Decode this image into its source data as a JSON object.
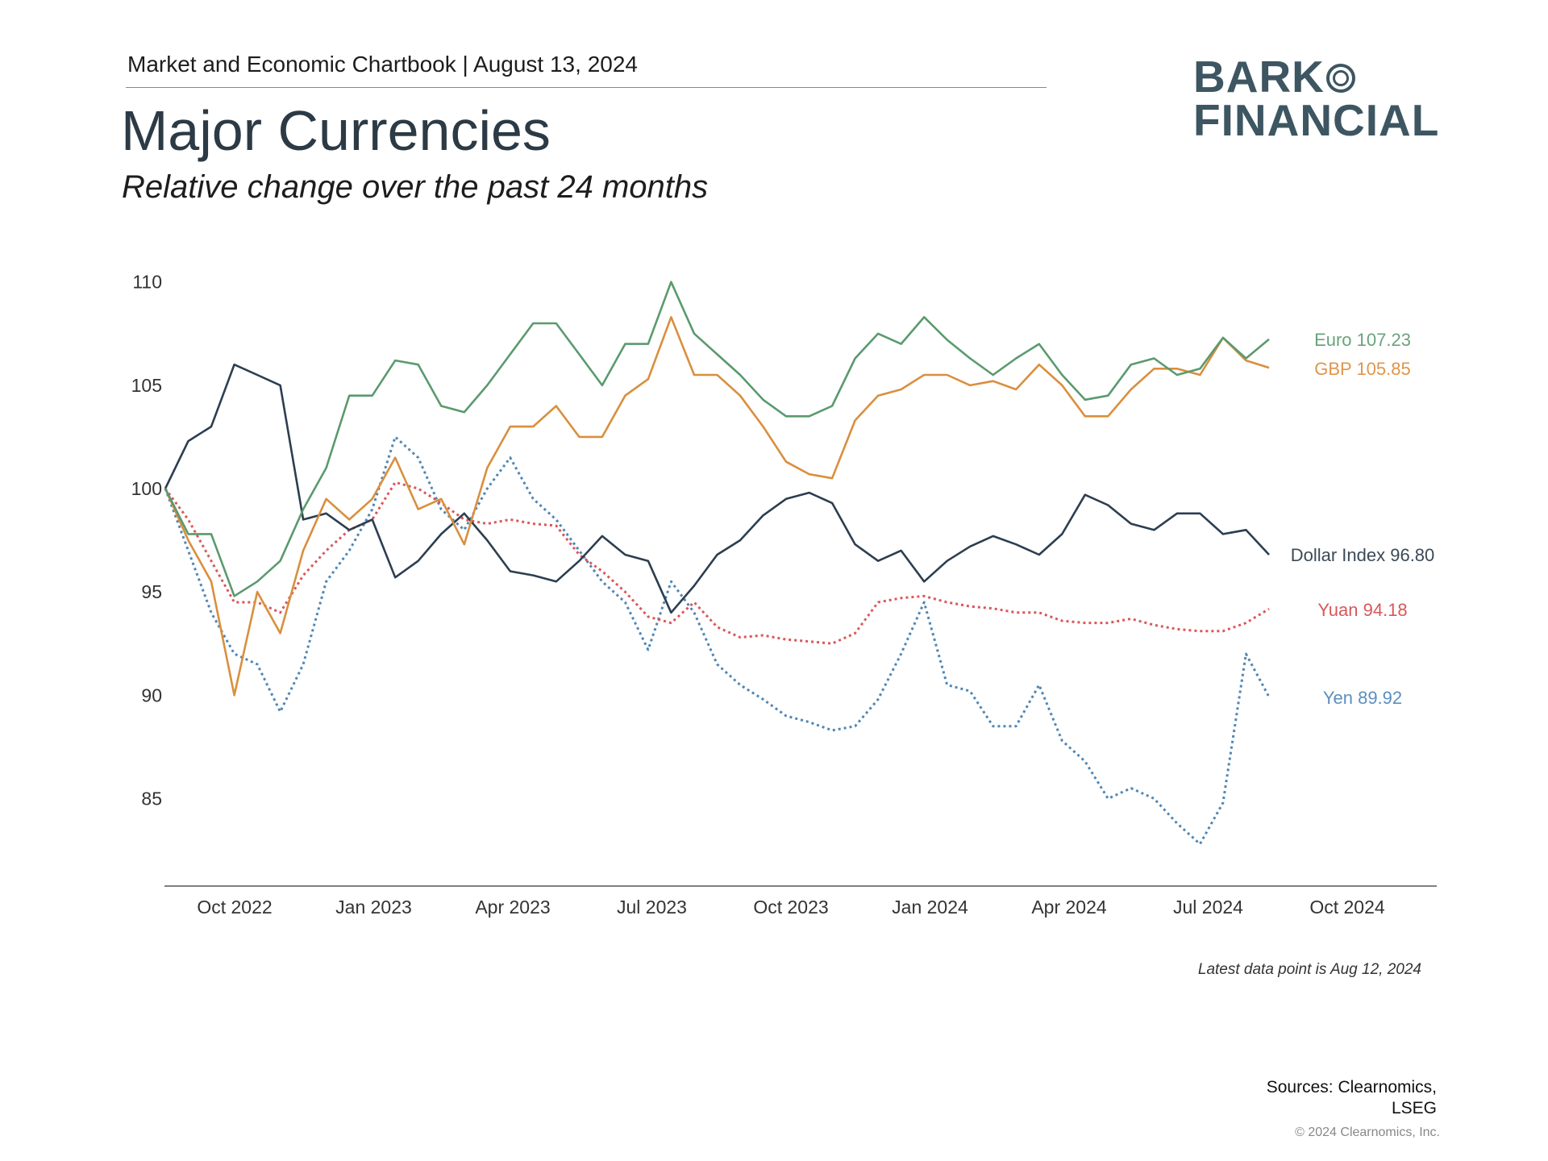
{
  "header": {
    "chartbook": "Market and Economic Chartbook | August 13, 2024",
    "title": "Major Currencies",
    "subtitle": "Relative change over the past 24 months"
  },
  "logo": {
    "line1_text": "BARK",
    "line2_text": "FINANCIAL",
    "full": "BARKO FINANCIAL"
  },
  "footer": {
    "latest": "Latest data point is Aug 12, 2024",
    "sources_line1": "Sources: Clearnomics,",
    "sources_line2": "LSEG",
    "copyright": "© 2024 Clearnomics, Inc."
  },
  "chart_data": {
    "type": "line",
    "title": "Major Currencies",
    "subtitle": "Relative change over the past 24 months",
    "x_start": "2022-08-12",
    "x_end": "2024-08-12",
    "x_step": "half-month",
    "xlabel": "",
    "ylabel": "",
    "ylim": [
      82,
      110.5
    ],
    "yticks": [
      110,
      105,
      100,
      95,
      90,
      85
    ],
    "xticks": [
      "Oct 2022",
      "Jan 2023",
      "Apr 2023",
      "Jul 2023",
      "Oct 2023",
      "Jan 2024",
      "Apr 2024",
      "Jul 2024",
      "Oct 2024"
    ],
    "grid": false,
    "legend": "direct labels at right end of lines",
    "series": [
      {
        "name": "Euro",
        "label": "Euro 107.23",
        "color": "#5a9a6e",
        "label_color": "#6aa37b",
        "style": "solid",
        "values": [
          100,
          97.8,
          97.8,
          94.8,
          95.5,
          96.5,
          99,
          101,
          104.5,
          104.5,
          106.2,
          106,
          104,
          103.7,
          105,
          106.5,
          108,
          108,
          106.5,
          105,
          107,
          107,
          110,
          107.5,
          106.5,
          105.5,
          104.3,
          103.5,
          103.5,
          104,
          106.3,
          107.5,
          107,
          108.3,
          107.2,
          106.3,
          105.5,
          106.3,
          107,
          105.5,
          104.3,
          104.5,
          106,
          106.3,
          105.5,
          105.8,
          107.3,
          106.3,
          107.23
        ]
      },
      {
        "name": "GBP",
        "label": "GBP 105.85",
        "color": "#d98f3e",
        "label_color": "#e0954a",
        "style": "solid",
        "values": [
          100,
          97.5,
          95.5,
          90,
          95,
          93,
          97,
          99.5,
          98.5,
          99.5,
          101.5,
          99,
          99.5,
          97.3,
          101,
          103,
          103,
          104,
          102.5,
          102.5,
          104.5,
          105.3,
          108.3,
          105.5,
          105.5,
          104.5,
          103,
          101.3,
          100.7,
          100.5,
          103.3,
          104.5,
          104.8,
          105.5,
          105.5,
          105,
          105.2,
          104.8,
          106,
          105,
          103.5,
          103.5,
          104.8,
          105.8,
          105.8,
          105.5,
          107.3,
          106.2,
          105.85
        ]
      },
      {
        "name": "Dollar Index",
        "label": "Dollar Index 96.80",
        "color": "#2c3e50",
        "label_color": "#3b4a58",
        "style": "solid",
        "values": [
          100,
          102.3,
          103,
          106,
          105.5,
          105,
          98.5,
          98.8,
          98,
          98.5,
          95.7,
          96.5,
          97.8,
          98.8,
          97.5,
          96,
          95.8,
          95.5,
          96.5,
          97.7,
          96.8,
          96.5,
          94,
          95.3,
          96.8,
          97.5,
          98.7,
          99.5,
          99.8,
          99.3,
          97.3,
          96.5,
          97,
          95.5,
          96.5,
          97.2,
          97.7,
          97.3,
          96.8,
          97.8,
          99.7,
          99.2,
          98.3,
          98,
          98.8,
          98.8,
          97.8,
          98,
          96.8
        ]
      },
      {
        "name": "Yuan",
        "label": "Yuan 94.18",
        "color": "#d9575a",
        "label_color": "#d9575a",
        "style": "dotted",
        "values": [
          100,
          98.5,
          96.5,
          94.5,
          94.5,
          94,
          95.8,
          97,
          98,
          98.5,
          100.3,
          100,
          99.3,
          98.5,
          98.3,
          98.5,
          98.3,
          98.2,
          96.8,
          96,
          95,
          93.8,
          93.5,
          94.5,
          93.3,
          92.8,
          92.9,
          92.7,
          92.6,
          92.5,
          93,
          94.5,
          94.7,
          94.8,
          94.5,
          94.3,
          94.2,
          94,
          94,
          93.6,
          93.5,
          93.5,
          93.7,
          93.4,
          93.2,
          93.1,
          93.1,
          93.5,
          94.18
        ]
      },
      {
        "name": "Yen",
        "label": "Yen 89.92",
        "color": "#4f86b5",
        "label_color": "#5b8fbf",
        "style": "dotted",
        "values": [
          100,
          97,
          94,
          92,
          91.5,
          89.2,
          91.5,
          95.5,
          97,
          99,
          102.5,
          101.5,
          99,
          98,
          100,
          101.5,
          99.5,
          98.5,
          97,
          95.5,
          94.5,
          92.2,
          95.5,
          94,
          91.5,
          90.5,
          89.8,
          89,
          88.7,
          88.3,
          88.5,
          89.8,
          92,
          94.5,
          90.5,
          90.2,
          88.5,
          88.5,
          90.5,
          87.8,
          86.8,
          85,
          85.5,
          85,
          83.8,
          82.8,
          84.8,
          92,
          89.92
        ]
      }
    ]
  }
}
